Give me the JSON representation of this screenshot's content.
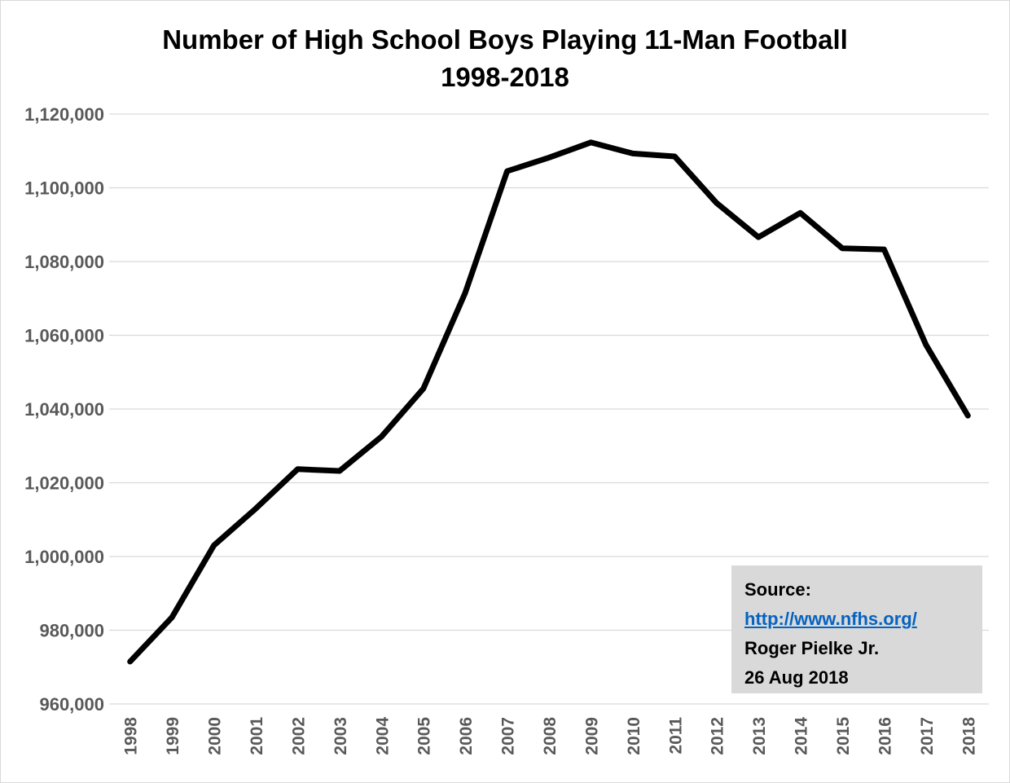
{
  "chart_data": {
    "type": "line",
    "title": "Number of High School Boys Playing 11-Man Football",
    "subtitle": "1998-2018",
    "xlabel": "",
    "ylabel": "",
    "x": [
      "1998",
      "1999",
      "2000",
      "2001",
      "2002",
      "2003",
      "2004",
      "2005",
      "2006",
      "2007",
      "2008",
      "2009",
      "2010",
      "2011",
      "2012",
      "2013",
      "2014",
      "2015",
      "2016",
      "2017",
      "2018"
    ],
    "series": [
      {
        "values": [
          971500,
          983500,
          1003000,
          1013000,
          1023700,
          1023200,
          1032500,
          1045500,
          1071500,
          1104500,
          1108200,
          1112300,
          1109300,
          1108500,
          1095900,
          1086600,
          1093200,
          1083600,
          1083300,
          1057400,
          1038200
        ],
        "color": "#000000"
      }
    ],
    "ylim": [
      960000,
      1120000
    ],
    "yticks": [
      "960,000",
      "980,000",
      "1,000,000",
      "1,020,000",
      "1,040,000",
      "1,060,000",
      "1,080,000",
      "1,100,000",
      "1,120,000"
    ],
    "grid": "horizontal",
    "legend": "none"
  },
  "source": {
    "label": "Source:",
    "link": "http://www.nfhs.org/",
    "author": "Roger Pielke Jr.",
    "date": "26 Aug 2018"
  },
  "colors": {
    "line": "#000000",
    "grid": "#d9d9d9",
    "tick_text": "#595959",
    "source_box": "#d9d9d9",
    "link": "#0563c1"
  }
}
